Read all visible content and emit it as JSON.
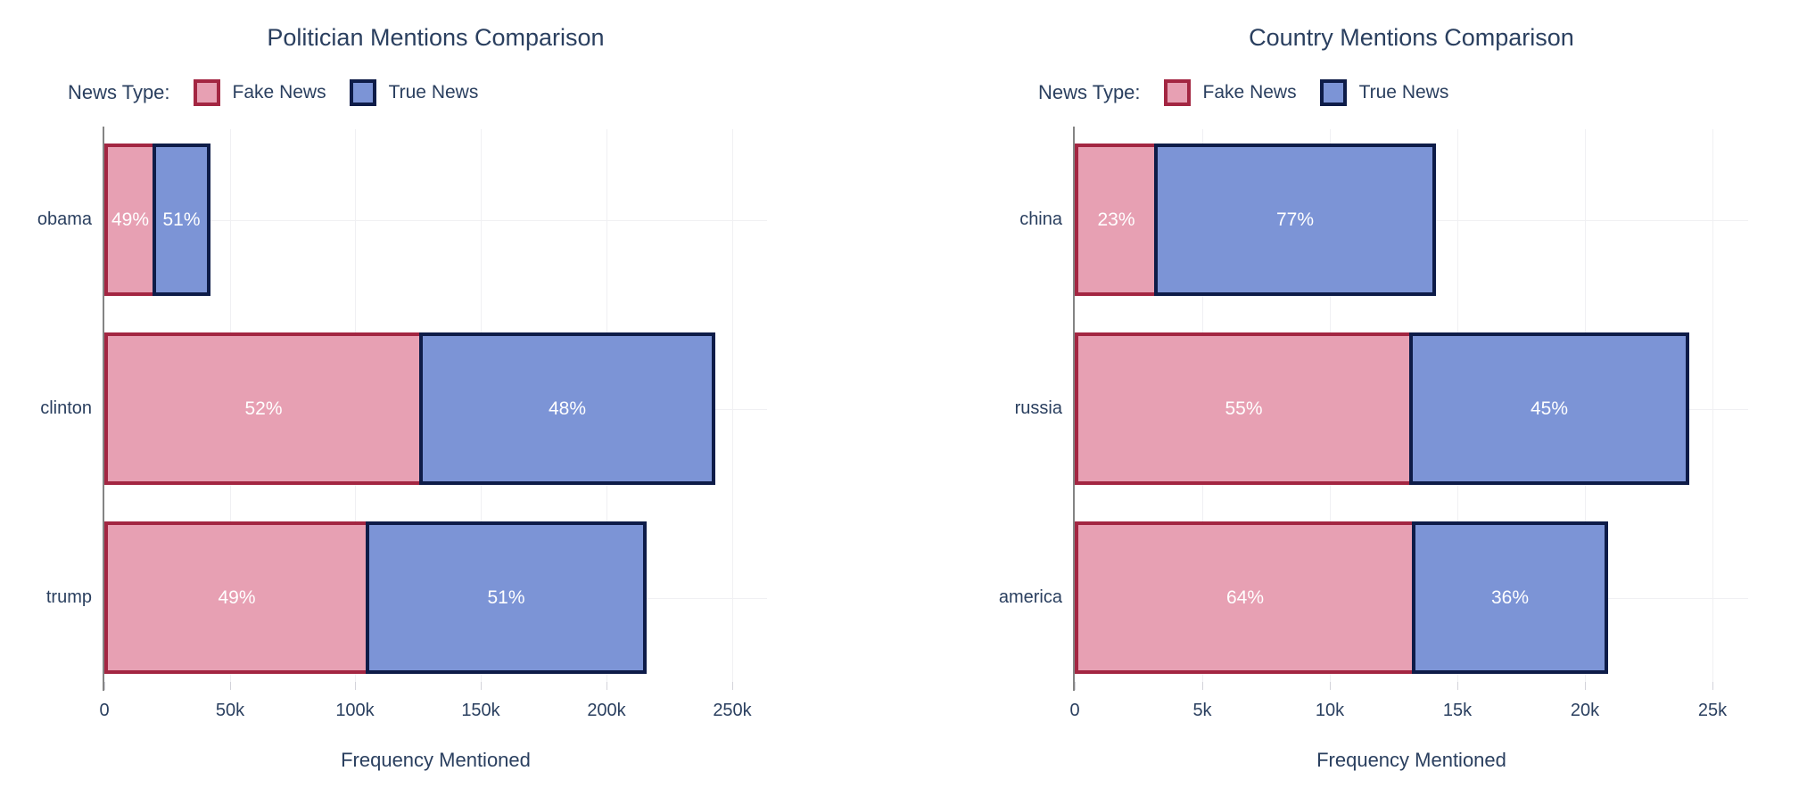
{
  "colors": {
    "background": "#ffffff",
    "text": "#2a3f5f",
    "axis_line": "#848484",
    "gridline": "#f0f0f3",
    "bar_label_text": "#ffffff",
    "fake_news_fill": "#e7a0b3",
    "fake_news_border": "#a32642",
    "true_news_fill": "#7c94d6",
    "true_news_border": "#0e1c48"
  },
  "chart_data": [
    {
      "type": "bar",
      "orientation": "horizontal",
      "stacked": true,
      "grid": true,
      "legend_position": "top-left",
      "title": "Politician Mentions Comparison",
      "xlabel": "Frequency Mentioned",
      "legend_title": "News Type:",
      "categories": [
        "obama",
        "clinton",
        "trump"
      ],
      "xlim": [
        0,
        264000
      ],
      "xticks": {
        "values": [
          0,
          50000,
          100000,
          150000,
          200000,
          250000
        ],
        "labels": [
          "0",
          "50k",
          "100k",
          "150k",
          "200k",
          "250k"
        ]
      },
      "series": [
        {
          "name": "Fake News",
          "fill": "#e7a0b3",
          "border": "#a32642",
          "values": [
            20600,
            126900,
            105600
          ],
          "percent_labels": [
            "49%",
            "52%",
            "49%"
          ]
        },
        {
          "name": "True News",
          "fill": "#7c94d6",
          "border": "#0e1c48",
          "values": [
            21700,
            116600,
            110400
          ],
          "percent_labels": [
            "51%",
            "48%",
            "51%"
          ]
        }
      ]
    },
    {
      "type": "bar",
      "orientation": "horizontal",
      "stacked": true,
      "grid": true,
      "legend_position": "top-left",
      "title": "Country Mentions Comparison",
      "xlabel": "Frequency Mentioned",
      "legend_title": "News Type:",
      "categories": [
        "china",
        "russia",
        "america"
      ],
      "xlim": [
        0,
        26400
      ],
      "xticks": {
        "values": [
          0,
          5000,
          10000,
          15000,
          20000,
          25000
        ],
        "labels": [
          "0",
          "5k",
          "10k",
          "15k",
          "20k",
          "25k"
        ]
      },
      "series": [
        {
          "name": "Fake News",
          "fill": "#e7a0b3",
          "border": "#a32642",
          "values": [
            3250,
            13250,
            13350
          ],
          "percent_labels": [
            "23%",
            "55%",
            "64%"
          ]
        },
        {
          "name": "True News",
          "fill": "#7c94d6",
          "border": "#0e1c48",
          "values": [
            10900,
            10850,
            7550
          ],
          "percent_labels": [
            "77%",
            "45%",
            "36%"
          ]
        }
      ]
    }
  ]
}
